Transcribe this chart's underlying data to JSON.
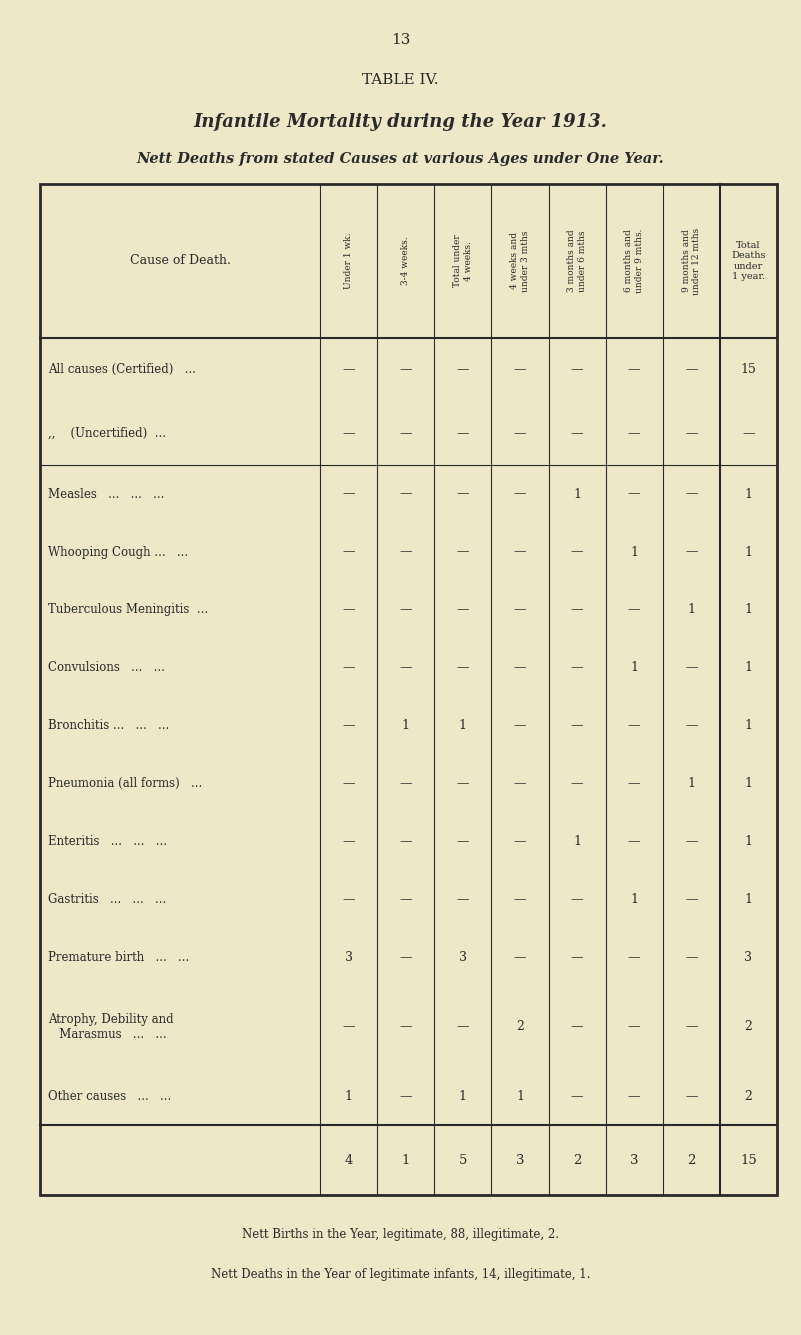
{
  "page_number": "13",
  "table_title": "TABLE IV.",
  "subtitle1": "Infantile Mortality during the Year 1913.",
  "subtitle2": "Nett Deaths from stated Causes at various Ages under One Year.",
  "bg_color": "#eee8c8",
  "text_color": "#2a2a2a",
  "col_headers": [
    "Under 1 wk.",
    "3-4 weeks.",
    "Total under\n4 weeks.",
    "4 weeks and\nunder 3 mths",
    "3 months and\nunder 6 mths",
    "6 months and\nunder 9 mths.",
    "9 months and\nunder 12 mths",
    "Total\nDeaths\nunder\n1 year."
  ],
  "cause_col_header": "Cause of Death.",
  "rows": [
    {
      "cause": "All causes (Certified)   ...",
      "vals": [
        "—",
        "—",
        "—",
        "—",
        "—",
        "—",
        "—",
        "15"
      ],
      "group": "top",
      "bold_total": false
    },
    {
      "cause": ",,    (Uncertified)  ...",
      "vals": [
        "—",
        "—",
        "—",
        "—",
        "—",
        "—",
        "—",
        "—"
      ],
      "group": "top",
      "bold_total": false
    },
    {
      "cause": "Measles   ...   ...   ...",
      "vals": [
        "—",
        "—",
        "—",
        "—",
        "1",
        "—",
        "—",
        "1"
      ],
      "group": "main",
      "bold_total": false
    },
    {
      "cause": "Whooping Cough ...   ...",
      "vals": [
        "—",
        "—",
        "—",
        "—",
        "—",
        "1",
        "—",
        "1"
      ],
      "group": "main",
      "bold_total": false
    },
    {
      "cause": "Tuberculous Meningitis  ...",
      "vals": [
        "—",
        "—",
        "—",
        "—",
        "—",
        "—",
        "1",
        "1"
      ],
      "group": "main",
      "bold_total": false
    },
    {
      "cause": "Convulsions   ...   ...",
      "vals": [
        "—",
        "—",
        "—",
        "—",
        "—",
        "1",
        "—",
        "1"
      ],
      "group": "main",
      "bold_total": false
    },
    {
      "cause": "Bronchitis ...   ...   ...",
      "vals": [
        "—",
        "1",
        "1",
        "—",
        "—",
        "—",
        "—",
        "1"
      ],
      "group": "main",
      "bold_total": false
    },
    {
      "cause": "Pneumonia (all forms)   ...",
      "vals": [
        "—",
        "—",
        "—",
        "—",
        "—",
        "—",
        "1",
        "1"
      ],
      "group": "main",
      "bold_total": false
    },
    {
      "cause": "Enteritis   ...   ...   ...",
      "vals": [
        "—",
        "—",
        "—",
        "—",
        "1",
        "—",
        "—",
        "1"
      ],
      "group": "main",
      "bold_total": false
    },
    {
      "cause": "Gastritis   ...   ...   ...",
      "vals": [
        "—",
        "—",
        "—",
        "—",
        "—",
        "1",
        "—",
        "1"
      ],
      "group": "main",
      "bold_total": false
    },
    {
      "cause": "Premature birth   ...   ...",
      "vals": [
        "3",
        "—",
        "3",
        "—",
        "—",
        "—",
        "—",
        "3"
      ],
      "group": "main",
      "bold_total": false
    },
    {
      "cause": "Atrophy, Debility and\n   Marasmus   ...   ...",
      "vals": [
        "—",
        "—",
        "—",
        "2",
        "—",
        "—",
        "—",
        "2"
      ],
      "group": "main",
      "bold_total": false
    },
    {
      "cause": "Other causes   ...   ...",
      "vals": [
        "1",
        "—",
        "1",
        "1",
        "—",
        "—",
        "—",
        "2"
      ],
      "group": "main",
      "bold_total": false
    },
    {
      "cause": "",
      "vals": [
        "4",
        "1",
        "5",
        "3",
        "2",
        "3",
        "2",
        "15"
      ],
      "group": "total",
      "bold_total": true
    }
  ],
  "footer1": "Nett Births in the Year, legitimate, 88, illegitimate, 2.",
  "footer2": "Nett Deaths in the Year of legitimate infants, 14, illegitimate, 1."
}
